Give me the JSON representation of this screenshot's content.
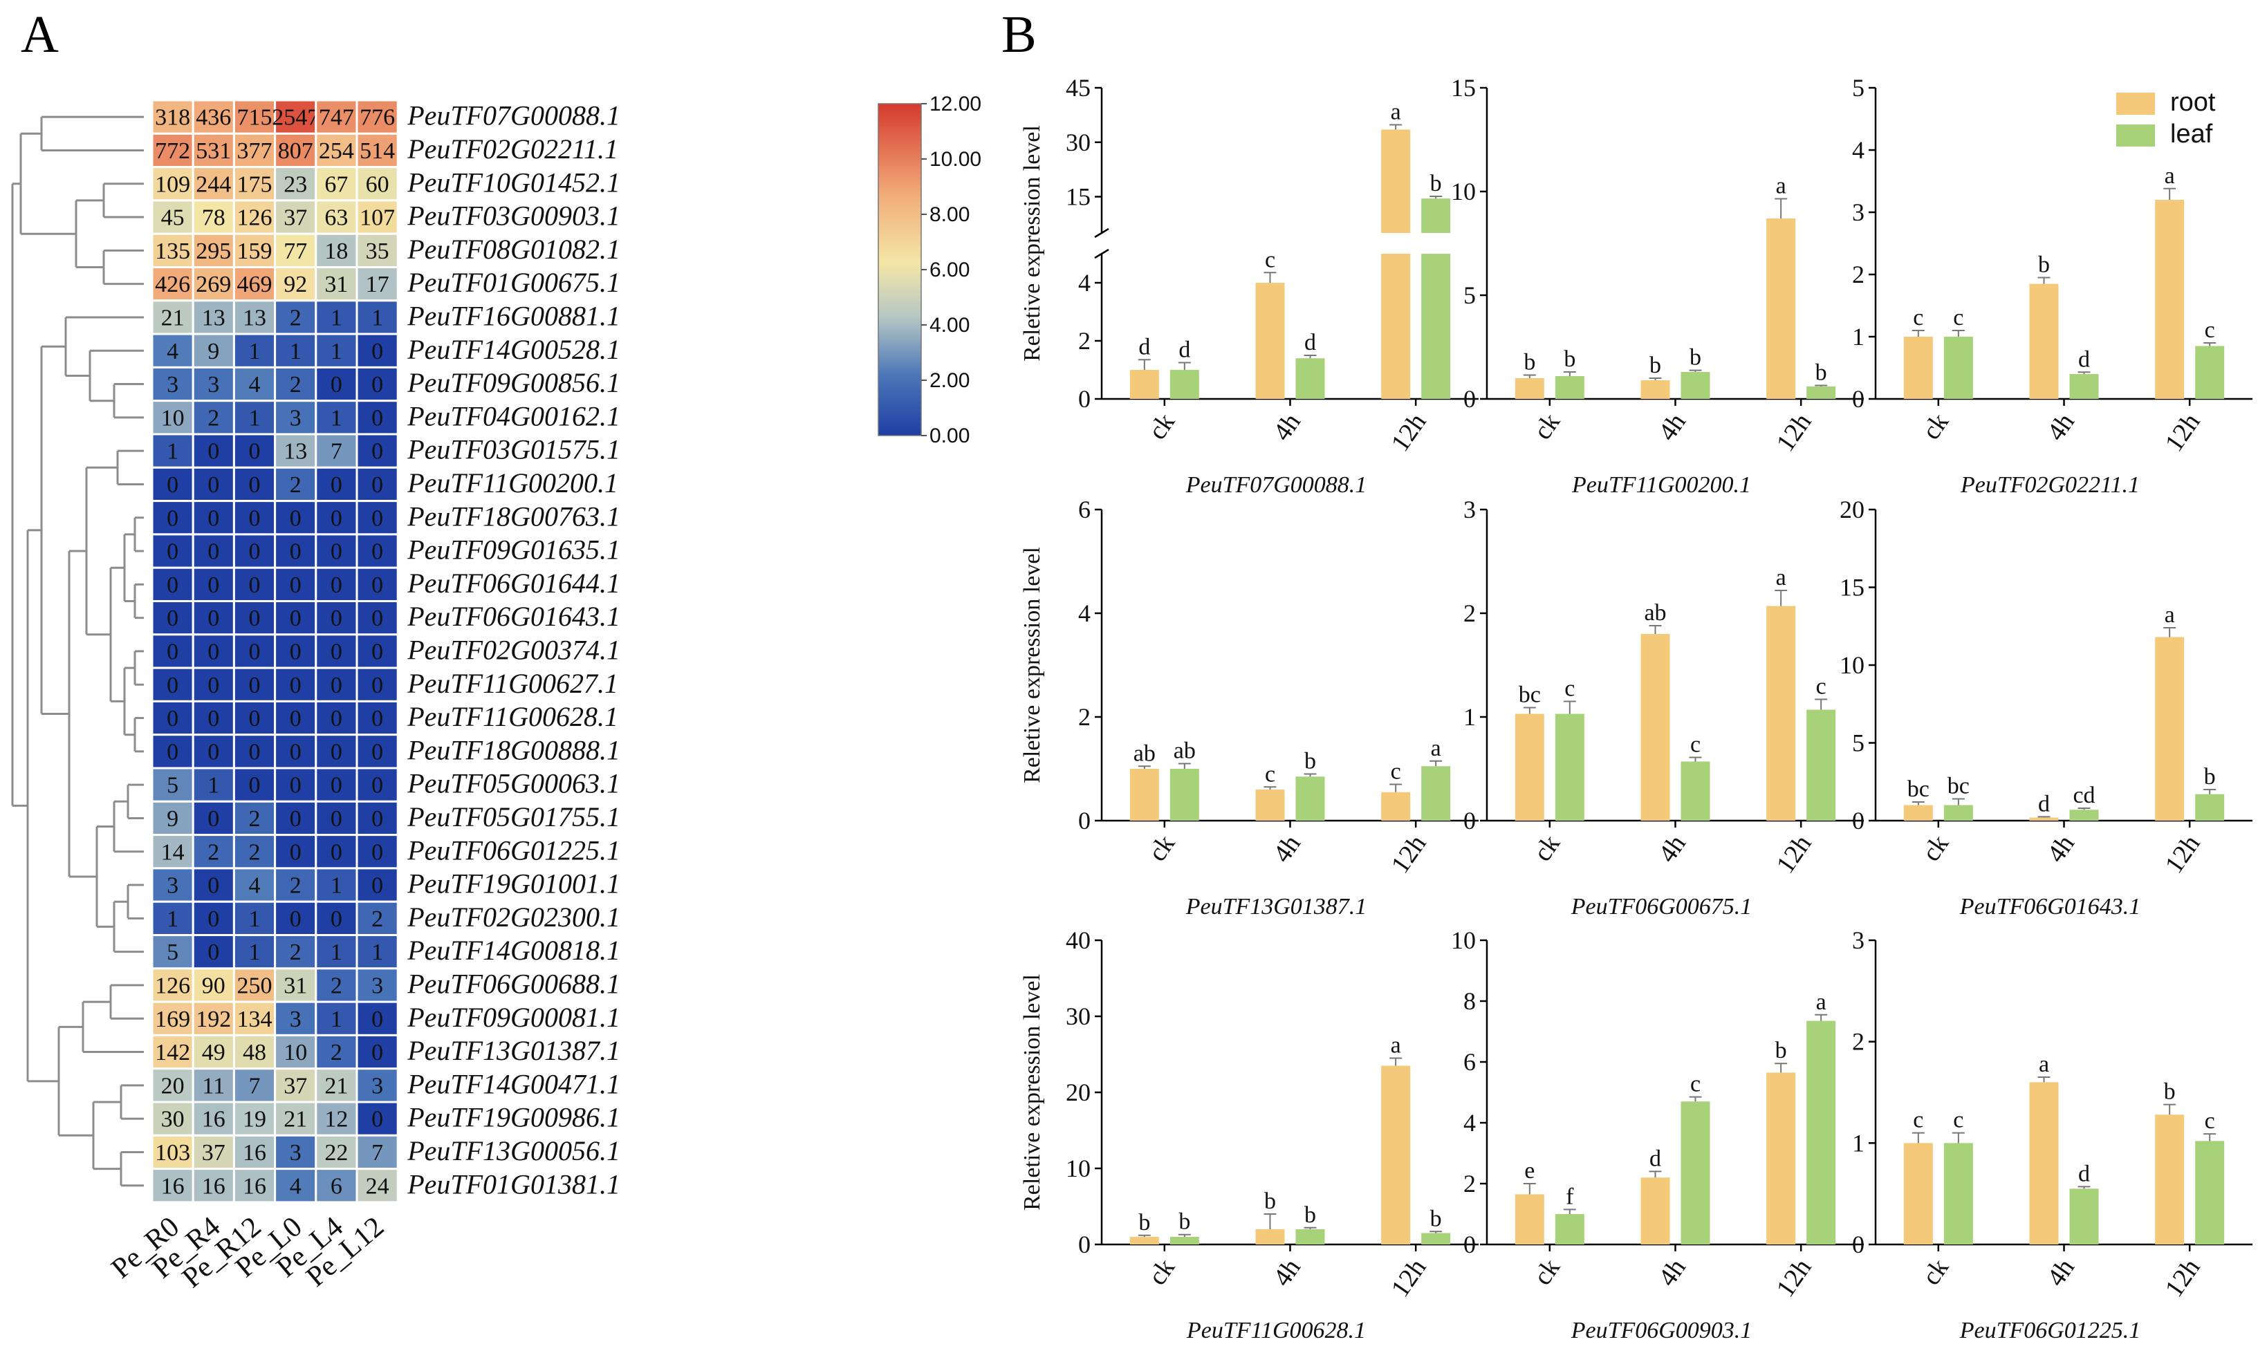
{
  "panel_a_label": "A",
  "panel_b_label": "B",
  "chart_data": [
    {
      "type": "heatmap",
      "panel": "A",
      "columns": [
        "Pe_R0",
        "Pe_R4",
        "Pe_R12",
        "Pe_L0",
        "Pe_L4",
        "Pe_L12"
      ],
      "rows": [
        {
          "gene": "PeuTF07G00088.1",
          "values": [
            318,
            436,
            715,
            2547,
            747,
            776
          ]
        },
        {
          "gene": "PeuTF02G02211.1",
          "values": [
            772,
            531,
            377,
            807,
            254,
            514
          ]
        },
        {
          "gene": "PeuTF10G01452.1",
          "values": [
            109,
            244,
            175,
            23,
            67,
            60
          ]
        },
        {
          "gene": "PeuTF03G00903.1",
          "values": [
            45,
            78,
            126,
            37,
            63,
            107
          ]
        },
        {
          "gene": "PeuTF08G01082.1",
          "values": [
            135,
            295,
            159,
            77,
            18,
            35
          ]
        },
        {
          "gene": "PeuTF01G00675.1",
          "values": [
            426,
            269,
            469,
            92,
            31,
            17
          ]
        },
        {
          "gene": "PeuTF16G00881.1",
          "values": [
            21,
            13,
            13,
            2,
            1,
            1
          ]
        },
        {
          "gene": "PeuTF14G00528.1",
          "values": [
            4,
            9,
            1,
            1,
            1,
            0
          ]
        },
        {
          "gene": "PeuTF09G00856.1",
          "values": [
            3,
            3,
            4,
            2,
            0,
            0
          ]
        },
        {
          "gene": "PeuTF04G00162.1",
          "values": [
            10,
            2,
            1,
            3,
            1,
            0
          ]
        },
        {
          "gene": "PeuTF03G01575.1",
          "values": [
            1,
            0,
            0,
            13,
            7,
            0
          ]
        },
        {
          "gene": "PeuTF11G00200.1",
          "values": [
            0,
            0,
            0,
            2,
            0,
            0
          ]
        },
        {
          "gene": "PeuTF18G00763.1",
          "values": [
            0,
            0,
            0,
            0,
            0,
            0
          ]
        },
        {
          "gene": "PeuTF09G01635.1",
          "values": [
            0,
            0,
            0,
            0,
            0,
            0
          ]
        },
        {
          "gene": "PeuTF06G01644.1",
          "values": [
            0,
            0,
            0,
            0,
            0,
            0
          ]
        },
        {
          "gene": "PeuTF06G01643.1",
          "values": [
            0,
            0,
            0,
            0,
            0,
            0
          ]
        },
        {
          "gene": "PeuTF02G00374.1",
          "values": [
            0,
            0,
            0,
            0,
            0,
            0
          ]
        },
        {
          "gene": "PeuTF11G00627.1",
          "values": [
            0,
            0,
            0,
            0,
            0,
            0
          ]
        },
        {
          "gene": "PeuTF11G00628.1",
          "values": [
            0,
            0,
            0,
            0,
            0,
            0
          ]
        },
        {
          "gene": "PeuTF18G00888.1",
          "values": [
            0,
            0,
            0,
            0,
            0,
            0
          ]
        },
        {
          "gene": "PeuTF05G00063.1",
          "values": [
            5,
            1,
            0,
            0,
            0,
            0
          ]
        },
        {
          "gene": "PeuTF05G01755.1",
          "values": [
            9,
            0,
            2,
            0,
            0,
            0
          ]
        },
        {
          "gene": "PeuTF06G01225.1",
          "values": [
            14,
            2,
            2,
            0,
            0,
            0
          ]
        },
        {
          "gene": "PeuTF19G01001.1",
          "values": [
            3,
            0,
            4,
            2,
            1,
            0
          ]
        },
        {
          "gene": "PeuTF02G02300.1",
          "values": [
            1,
            0,
            1,
            0,
            0,
            2
          ]
        },
        {
          "gene": "PeuTF14G00818.1",
          "values": [
            5,
            0,
            1,
            2,
            1,
            1
          ]
        },
        {
          "gene": "PeuTF06G00688.1",
          "values": [
            126,
            90,
            250,
            31,
            2,
            3
          ]
        },
        {
          "gene": "PeuTF09G00081.1",
          "values": [
            169,
            192,
            134,
            3,
            1,
            0
          ]
        },
        {
          "gene": "PeuTF13G01387.1",
          "values": [
            142,
            49,
            48,
            10,
            2,
            0
          ]
        },
        {
          "gene": "PeuTF14G00471.1",
          "values": [
            20,
            11,
            7,
            37,
            21,
            3
          ]
        },
        {
          "gene": "PeuTF19G00986.1",
          "values": [
            30,
            16,
            19,
            21,
            12,
            0
          ]
        },
        {
          "gene": "PeuTF13G00056.1",
          "values": [
            103,
            37,
            16,
            3,
            22,
            7
          ]
        },
        {
          "gene": "PeuTF01G01381.1",
          "values": [
            16,
            16,
            16,
            4,
            6,
            24
          ]
        }
      ],
      "color_scale": {
        "transform": "log2(value+1)",
        "range": [
          0,
          12
        ],
        "ticks": [
          "0.00",
          "2.00",
          "4.00",
          "6.00",
          "8.00",
          "10.00",
          "12.00"
        ],
        "colors": [
          "#1f3fa5",
          "#4a76b8",
          "#b8c8c4",
          "#f3e6a6",
          "#f2ae7c",
          "#d63a2e"
        ]
      }
    },
    {
      "type": "bar",
      "panel": "B",
      "legend": [
        "root",
        "leaf"
      ],
      "legend_colors": [
        "#f5c97a",
        "#a8d27a"
      ],
      "ylabel": "Reletive expression level",
      "categories": [
        "ck",
        "4h",
        "12h"
      ],
      "plots": [
        {
          "title": "PeuTF07G00088.1",
          "ylim": [
            0,
            45
          ],
          "broken_axis": {
            "lower": [
              0,
              5
            ],
            "upper": [
              5,
              45
            ]
          },
          "yticks": [
            0,
            2,
            4,
            15,
            30,
            45
          ],
          "ylabel": true,
          "series": [
            {
              "name": "root",
              "values": [
                1,
                4,
                33.5
              ],
              "errors": [
                0.35,
                0.35,
                1.3
              ],
              "letters": [
                "d",
                "c",
                "a"
              ]
            },
            {
              "name": "leaf",
              "values": [
                1,
                1.4,
                14.5
              ],
              "errors": [
                0.25,
                0.1,
                0.6
              ],
              "letters": [
                "d",
                "d",
                "b"
              ]
            }
          ]
        },
        {
          "title": "PeuTF11G00200.1",
          "ylim": [
            0,
            15
          ],
          "yticks": [
            0,
            5,
            10,
            15
          ],
          "ylabel": false,
          "series": [
            {
              "name": "root",
              "values": [
                1,
                0.9,
                8.7
              ],
              "errors": [
                0.15,
                0.1,
                0.95
              ],
              "letters": [
                "b",
                "b",
                "a"
              ]
            },
            {
              "name": "leaf",
              "values": [
                1.1,
                1.3,
                0.6
              ],
              "errors": [
                0.2,
                0.08,
                0.05
              ],
              "letters": [
                "b",
                "b",
                "b"
              ]
            }
          ]
        },
        {
          "title": "PeuTF02G02211.1",
          "ylim": [
            0,
            5
          ],
          "yticks": [
            0,
            1,
            2,
            3,
            4,
            5
          ],
          "ylabel": false,
          "series": [
            {
              "name": "root",
              "values": [
                1,
                1.85,
                3.2
              ],
              "errors": [
                0.1,
                0.1,
                0.18
              ],
              "letters": [
                "c",
                "b",
                "a"
              ]
            },
            {
              "name": "leaf",
              "values": [
                1,
                0.4,
                0.85
              ],
              "errors": [
                0.1,
                0.03,
                0.05
              ],
              "letters": [
                "c",
                "d",
                "c"
              ]
            }
          ]
        },
        {
          "title": "PeuTF13G01387.1",
          "ylim": [
            0,
            6
          ],
          "yticks": [
            0,
            2,
            4,
            6
          ],
          "ylabel": true,
          "series": [
            {
              "name": "root",
              "values": [
                1,
                0.6,
                0.55
              ],
              "errors": [
                0.05,
                0.05,
                0.15
              ],
              "letters": [
                "ab",
                "c",
                "c"
              ]
            },
            {
              "name": "leaf",
              "values": [
                1,
                0.85,
                1.05
              ],
              "errors": [
                0.1,
                0.05,
                0.1
              ],
              "letters": [
                "ab",
                "b",
                "a"
              ]
            }
          ]
        },
        {
          "title": "PeuTF06G00675.1",
          "ylim": [
            0,
            3
          ],
          "yticks": [
            0,
            1,
            2,
            3
          ],
          "ylabel": false,
          "series": [
            {
              "name": "root",
              "values": [
                1.03,
                1.8,
                2.07
              ],
              "errors": [
                0.06,
                0.08,
                0.15
              ],
              "letters": [
                "bc",
                "ab",
                "a"
              ]
            },
            {
              "name": "leaf",
              "values": [
                1.03,
                0.57,
                1.07
              ],
              "errors": [
                0.12,
                0.04,
                0.1
              ],
              "letters": [
                "c",
                "c",
                "c"
              ]
            }
          ]
        },
        {
          "title": "PeuTF06G01643.1",
          "ylim": [
            0,
            20
          ],
          "yticks": [
            0,
            5,
            10,
            15,
            20
          ],
          "ylabel": false,
          "series": [
            {
              "name": "root",
              "values": [
                1,
                0.2,
                11.8
              ],
              "errors": [
                0.2,
                0.05,
                0.6
              ],
              "letters": [
                "bc",
                "d",
                "a"
              ]
            },
            {
              "name": "leaf",
              "values": [
                1,
                0.7,
                1.7
              ],
              "errors": [
                0.4,
                0.1,
                0.3
              ],
              "letters": [
                "bc",
                "cd",
                "b"
              ]
            }
          ]
        },
        {
          "title": "PeuTF11G00628.1",
          "ylim": [
            0,
            40
          ],
          "yticks": [
            0,
            10,
            20,
            30,
            40
          ],
          "ylabel": true,
          "series": [
            {
              "name": "root",
              "values": [
                1,
                2,
                23.5
              ],
              "errors": [
                0.2,
                2,
                1
              ],
              "letters": [
                "b",
                "b",
                "a"
              ]
            },
            {
              "name": "leaf",
              "values": [
                1,
                2,
                1.5
              ],
              "errors": [
                0.3,
                0.2,
                0.2
              ],
              "letters": [
                "b",
                "b",
                "b"
              ]
            }
          ]
        },
        {
          "title": "PeuTF06G00903.1",
          "ylim": [
            0,
            10
          ],
          "yticks": [
            0,
            2,
            4,
            6,
            8,
            10
          ],
          "ylabel": false,
          "series": [
            {
              "name": "root",
              "values": [
                1.65,
                2.2,
                5.65
              ],
              "errors": [
                0.35,
                0.2,
                0.3
              ],
              "letters": [
                "e",
                "d",
                "b"
              ]
            },
            {
              "name": "leaf",
              "values": [
                1,
                4.7,
                7.35
              ],
              "errors": [
                0.15,
                0.15,
                0.2
              ],
              "letters": [
                "f",
                "c",
                "a"
              ]
            }
          ]
        },
        {
          "title": "PeuTF06G01225.1",
          "ylim": [
            0,
            3
          ],
          "yticks": [
            0,
            1,
            2,
            3
          ],
          "ylabel": false,
          "series": [
            {
              "name": "root",
              "values": [
                1,
                1.6,
                1.28
              ],
              "errors": [
                0.1,
                0.05,
                0.1
              ],
              "letters": [
                "c",
                "a",
                "b"
              ]
            },
            {
              "name": "leaf",
              "values": [
                1,
                0.55,
                1.02
              ],
              "errors": [
                0.1,
                0.02,
                0.07
              ],
              "letters": [
                "c",
                "d",
                "c"
              ]
            }
          ]
        }
      ]
    }
  ]
}
